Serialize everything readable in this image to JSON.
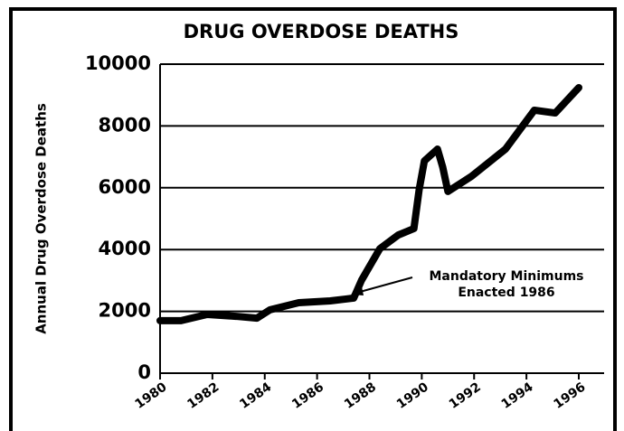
{
  "chart_data": {
    "type": "line",
    "title": "DRUG OVERDOSE DEATHS",
    "y_label": "Annual Drug Overdose Deaths",
    "annotation": [
      "Mandatory Minimums",
      "Enacted 1986"
    ],
    "x": [
      1980,
      1980.8,
      1981.8,
      1982.9,
      1983.7,
      1984.2,
      1985.3,
      1986.5,
      1987.4,
      1987.7,
      1988.4,
      1989.1,
      1989.7,
      1989.9,
      1990.1,
      1990.6,
      1990.8,
      1991.0,
      1991.9,
      1993.2,
      1994.3,
      1995.1,
      1996
    ],
    "series": [
      {
        "name": "Annual Drug Overdose Deaths",
        "color": "#000000",
        "values": [
          1700,
          1700,
          1900,
          1840,
          1780,
          2050,
          2280,
          2340,
          2430,
          3010,
          4030,
          4470,
          4680,
          5940,
          6870,
          7250,
          6670,
          5880,
          6370,
          7250,
          8510,
          8420,
          9240
        ]
      }
    ],
    "xlim": [
      1980,
      1996
    ],
    "xticks": [
      1980,
      1982,
      1984,
      1986,
      1988,
      1990,
      1992,
      1994,
      1996
    ],
    "ylim": [
      0,
      10000
    ],
    "yticks": [
      0,
      2000,
      4000,
      6000,
      8000,
      10000
    ],
    "grid": true
  }
}
